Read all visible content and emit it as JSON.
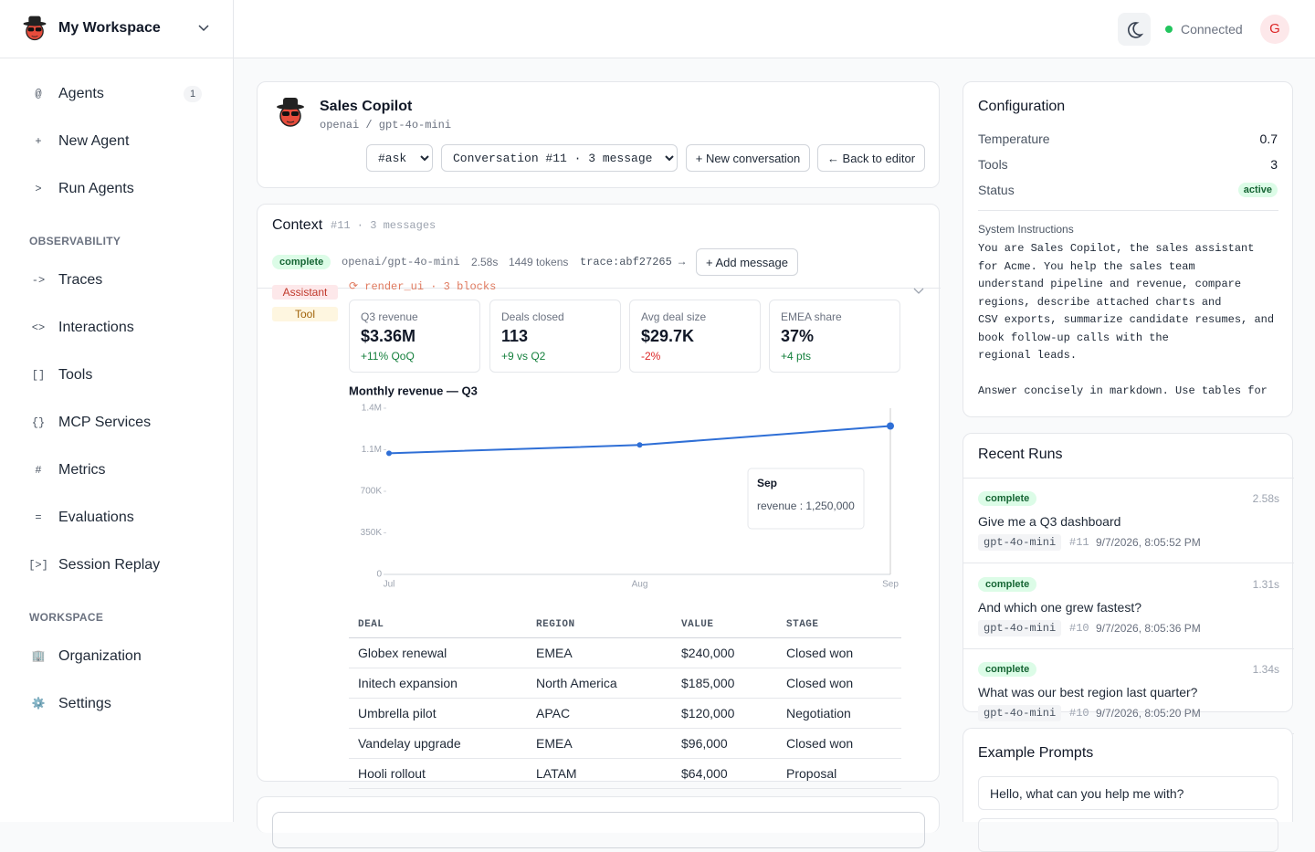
{
  "sidebar": {
    "workspace": "My Workspace",
    "nav": [
      {
        "icon": "@",
        "label": "Agents",
        "badge": 1
      },
      {
        "icon": "+",
        "label": "New Agent"
      },
      {
        "icon": ">",
        "label": "Run Agents"
      }
    ],
    "sections": [
      {
        "title": "OBSERVABILITY",
        "items": [
          {
            "icon": "->",
            "label": "Traces"
          },
          {
            "icon": "<>",
            "label": "Interactions"
          },
          {
            "icon": "[]",
            "label": "Tools"
          },
          {
            "icon": "{}",
            "label": "MCP Services"
          },
          {
            "icon": "#",
            "label": "Metrics"
          },
          {
            "icon": "=",
            "label": "Evaluations"
          },
          {
            "icon": "[>]",
            "label": "Session Replay"
          }
        ]
      },
      {
        "title": "WORKSPACE",
        "items": [
          {
            "icon": "🏢",
            "label": "Organization"
          },
          {
            "icon": "⚙️",
            "label": "Settings"
          }
        ]
      }
    ]
  },
  "header": {
    "status": "Connected",
    "avatar": "G"
  },
  "agent": {
    "name": "Sales Copilot",
    "model": "openai / gpt-4o-mini",
    "mode": "#ask",
    "conversation": "Conversation #11 · 3 message",
    "new_conversation": "+ New conversation",
    "back": "← Back to editor"
  },
  "context": {
    "title": "Context",
    "meta": "#11 · 3 messages",
    "status": "complete",
    "model": "openai/gpt-4o-mini",
    "duration": "2.58s",
    "tokens": "1449 tokens",
    "trace": "trace:abf27265 →",
    "add_message": "+ Add message",
    "roles": [
      "Assistant",
      "Tool"
    ],
    "block": "⟳ render_ui · 3 blocks",
    "kpis": [
      {
        "label": "Q3 revenue",
        "value": "$3.36M",
        "delta": "+11% QoQ"
      },
      {
        "label": "Deals closed",
        "value": "113",
        "delta": "+9 vs Q2"
      },
      {
        "label": "Avg deal size",
        "value": "$29.7K",
        "delta": "-2%"
      },
      {
        "label": "EMEA share",
        "value": "37%",
        "delta": "+4 pts"
      }
    ]
  },
  "chart_data": {
    "type": "line",
    "title": "Monthly revenue — Q3",
    "categories": [
      "Jul",
      "Aug",
      "Sep"
    ],
    "series": [
      {
        "name": "revenue",
        "color": "#2f6fd6",
        "values": [
          1020000,
          1090000,
          1250000
        ]
      }
    ],
    "ylim": [
      0,
      1400000
    ],
    "yticks": [
      0,
      {
        "value": 350000,
        "label": "350K"
      },
      {
        "value": 700000,
        "label": "700K"
      },
      {
        "value": 1050000,
        "label": "1.1M"
      },
      {
        "value": 1400000,
        "label": "1.4M"
      }
    ],
    "grid": false,
    "tooltip": {
      "title": "Sep",
      "text": "revenue : 1,250,000"
    }
  },
  "table": {
    "columns": [
      "DEAL",
      "REGION",
      "VALUE",
      "STAGE"
    ],
    "rows": [
      [
        "Globex renewal",
        "EMEA",
        "$240,000",
        "Closed won"
      ],
      [
        "Initech expansion",
        "North America",
        "$185,000",
        "Closed won"
      ],
      [
        "Umbrella pilot",
        "APAC",
        "$120,000",
        "Negotiation"
      ],
      [
        "Vandelay upgrade",
        "EMEA",
        "$96,000",
        "Closed won"
      ],
      [
        "Hooli rollout",
        "LATAM",
        "$64,000",
        "Proposal"
      ]
    ]
  },
  "config": {
    "title": "Configuration",
    "rows": [
      {
        "label": "Temperature",
        "value": 0.7
      },
      {
        "label": "Tools",
        "value": 3
      },
      {
        "label": "Status",
        "value": "active"
      }
    ],
    "instructions_title": "System Instructions",
    "instructions": "You are Sales Copilot, the sales assistant\nfor Acme. You help the sales team\nunderstand pipeline and revenue, compare\nregions, describe attached charts and\nCSV exports, summarize candidate resumes, and\nbook follow-up calls with the\nregional leads.\n\nAnswer concisely in markdown. Use tables for"
  },
  "recent_runs": {
    "title": "Recent Runs",
    "runs": [
      {
        "status": "complete",
        "duration": "2.58s",
        "question": "Give me a Q3 dashboard",
        "model": "gpt-4o-mini",
        "id": "#11",
        "time": "9/7/2026, 8:05:52 PM"
      },
      {
        "status": "complete",
        "duration": "1.31s",
        "question": "And which one grew fastest?",
        "model": "gpt-4o-mini",
        "id": "#10",
        "time": "9/7/2026, 8:05:36 PM"
      },
      {
        "status": "complete",
        "duration": "1.34s",
        "question": "What was our best region last quarter?",
        "model": "gpt-4o-mini",
        "id": "#10",
        "time": "9/7/2026, 8:05:20 PM"
      }
    ]
  },
  "example_prompts": {
    "title": "Example Prompts",
    "items": [
      "Hello, what can you help me with?"
    ]
  }
}
